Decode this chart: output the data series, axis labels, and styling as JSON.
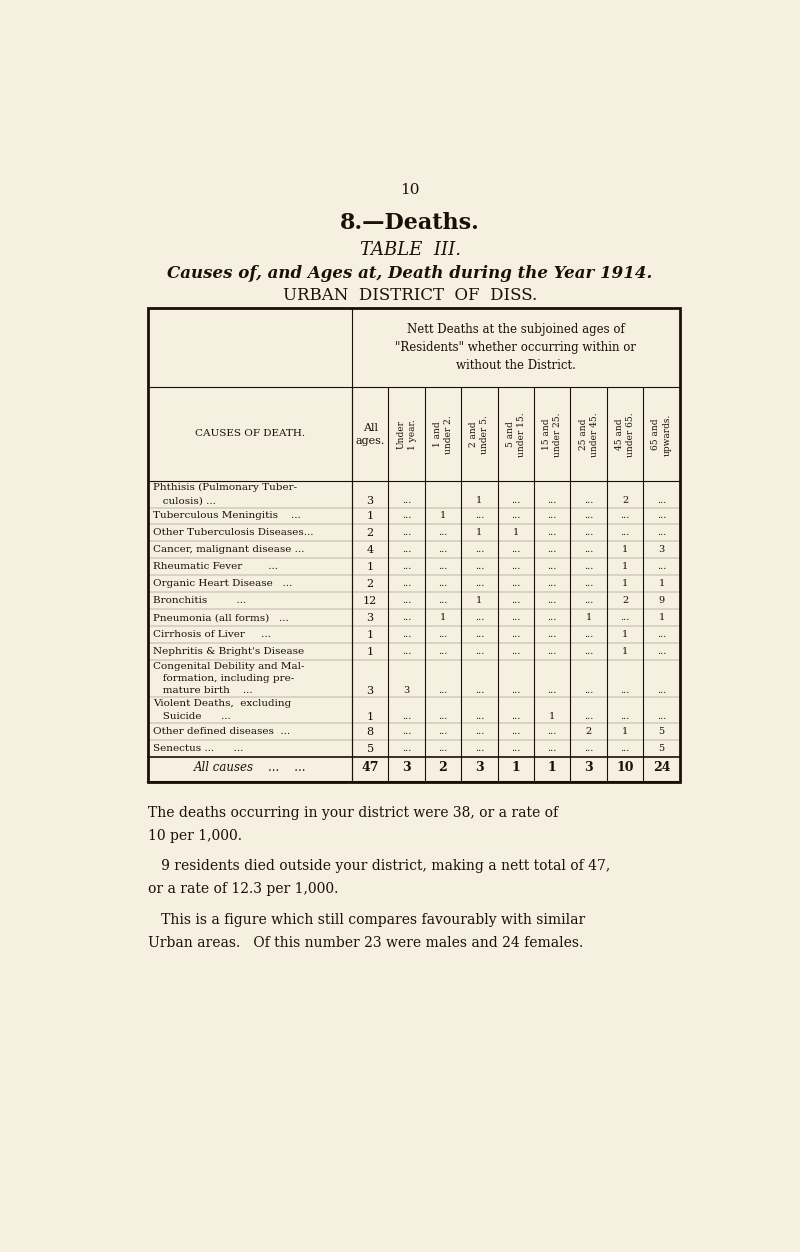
{
  "page_number": "10",
  "main_title": "8.—Deaths.",
  "subtitle1": "TABLE  III.",
  "subtitle2": "Causes of, and Ages at, Death during the Year 1914.",
  "subtitle3": "URBAN  DISTRICT  OF  DISS.",
  "table_header_main": "Nett Deaths at the subjoined ages of\n\"Residents\" whether occurring within or\nwithout the District.",
  "col_header_0": "All\nages.",
  "col_headers": [
    "Under\n1 year.",
    "1 and\nunder 2.",
    "2 and\nunder 5.",
    "5 and\nunder 15.",
    "15 and\nunder 25.",
    "25 and\nunder 45.",
    "45 and\nunder 65.",
    "65 and\nupwards."
  ],
  "causes_label": "CAUSES OF DEATH.",
  "rows": [
    {
      "cause": [
        "Phthisis (Pulmonary Tuber-",
        "   culosis) ..."
      ],
      "all": "3",
      "cols": [
        "...",
        "",
        "1",
        "...",
        "...",
        "...",
        "2",
        "..."
      ]
    },
    {
      "cause": [
        "Tuberculous Meningitis    ..."
      ],
      "all": "1",
      "cols": [
        "...",
        "1",
        "...",
        "...",
        "...",
        "...",
        "...",
        "..."
      ]
    },
    {
      "cause": [
        "Other Tuberculosis Diseases..."
      ],
      "all": "2",
      "cols": [
        "...",
        "...",
        "1",
        "1",
        "...",
        "...",
        "...",
        "..."
      ]
    },
    {
      "cause": [
        "Cancer, malignant disease ..."
      ],
      "all": "4",
      "cols": [
        "...",
        "...",
        "...",
        "...",
        "...",
        "...",
        "1",
        "3"
      ]
    },
    {
      "cause": [
        "Rheumatic Fever        ..."
      ],
      "all": "1",
      "cols": [
        "...",
        "...",
        "...",
        "...",
        "...",
        "...",
        "1",
        "..."
      ]
    },
    {
      "cause": [
        "Organic Heart Disease   ..."
      ],
      "all": "2",
      "cols": [
        "...",
        "...",
        "...",
        "...",
        "...",
        "...",
        "1",
        "1"
      ]
    },
    {
      "cause": [
        "Bronchitis         ..."
      ],
      "all": "12",
      "cols": [
        "...",
        "...",
        "1",
        "...",
        "...",
        "...",
        "2",
        "9"
      ]
    },
    {
      "cause": [
        "Pneumonia (all forms)   ..."
      ],
      "all": "3",
      "cols": [
        "...",
        "1",
        "...",
        "...",
        "...",
        "1",
        "...",
        "1"
      ]
    },
    {
      "cause": [
        "Cirrhosis of Liver     ..."
      ],
      "all": "1",
      "cols": [
        "...",
        "...",
        "...",
        "...",
        "...",
        "...",
        "1",
        "..."
      ]
    },
    {
      "cause": [
        "Nephritis & Bright's Disease"
      ],
      "all": "1",
      "cols": [
        "...",
        "...",
        "...",
        "...",
        "...",
        "...",
        "1",
        "..."
      ]
    },
    {
      "cause": [
        "Congenital Debility and Mal-",
        "   formation, including pre-",
        "   mature birth    ..."
      ],
      "all": "3",
      "cols": [
        "3",
        "...",
        "...",
        "...",
        "...",
        "...",
        "...",
        "..."
      ]
    },
    {
      "cause": [
        "Violent Deaths,  excluding",
        "   Suicide      ..."
      ],
      "all": "1",
      "cols": [
        "...",
        "...",
        "...",
        "...",
        "1",
        "...",
        "...",
        "..."
      ]
    },
    {
      "cause": [
        "Other defined diseases  ..."
      ],
      "all": "8",
      "cols": [
        "...",
        "...",
        "...",
        "...",
        "...",
        "2",
        "1",
        "5"
      ]
    },
    {
      "cause": [
        "Senectus ...      ..."
      ],
      "all": "5",
      "cols": [
        "...",
        "...",
        "...",
        "...",
        "...",
        "...",
        "...",
        "5"
      ]
    }
  ],
  "total_row": {
    "cause": "All causes    ...    ...",
    "all": "47",
    "cols": [
      "3",
      "2",
      "3",
      "1",
      "1",
      "3",
      "10",
      "24"
    ]
  },
  "footer_lines": [
    "The deaths occurring in your district were 38, or a rate of",
    "10 per 1,000.",
    "   9 residents died outside your district, making a nett total of 47,",
    "or a rate of 12.3 per 1,000.",
    "   This is a figure which still compares favourably with similar",
    "Urban areas.   Of this number 23 were males and 24 females."
  ],
  "bg_color": "#f5f0e0",
  "text_color": "#1a1008",
  "table_bg": "#f5f0e0"
}
